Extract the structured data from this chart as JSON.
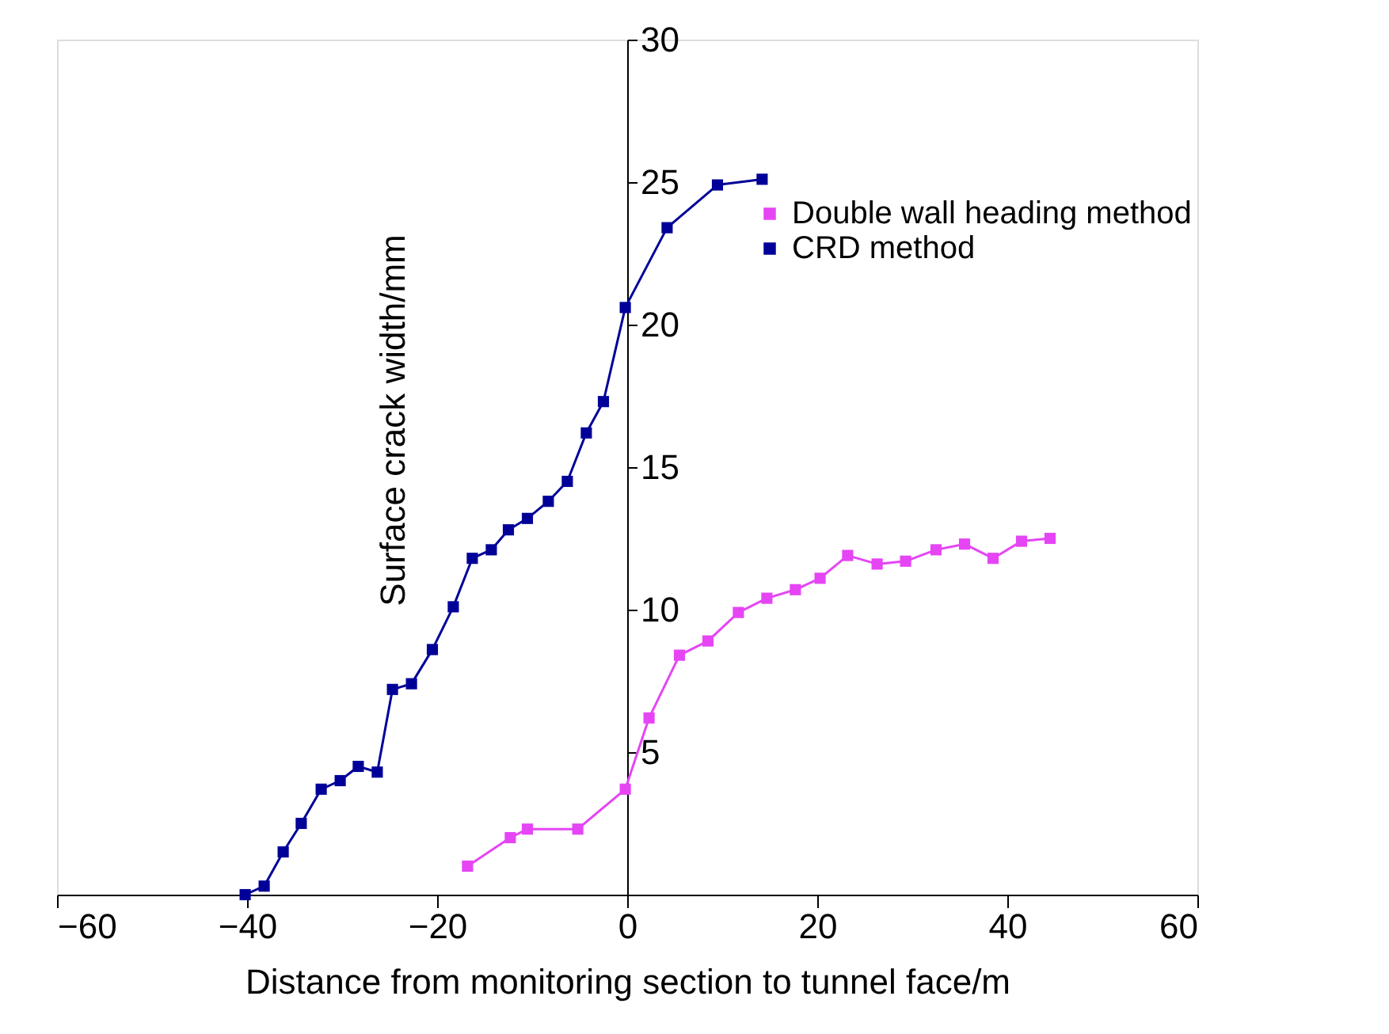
{
  "chart_data": {
    "type": "line",
    "xlabel": "Distance from monitoring section to tunnel face/m",
    "ylabel": "Surface crack width/mm",
    "xlim": [
      -60,
      60
    ],
    "xticks": [
      -60,
      -40,
      -20,
      0,
      20,
      40,
      60
    ],
    "ylim": [
      0,
      30
    ],
    "yticks": [
      {
        "value": 0,
        "label": null
      },
      5,
      10,
      15,
      20,
      25,
      30
    ],
    "grid": false,
    "legend": "top right",
    "marker": "square",
    "line_style": "solid",
    "series": [
      {
        "name": "Double wall heading method",
        "color": "#e545f5",
        "x": [
          -16.8,
          -12.3,
          -10.5,
          -5.2,
          -0.2,
          2.3,
          5.5,
          8.5,
          11.7,
          14.7,
          17.7,
          20.3,
          23.2,
          26.3,
          29.3,
          32.5,
          35.5,
          38.5,
          41.5,
          44.5
        ],
        "values": [
          1.0,
          2.0,
          2.3,
          2.3,
          3.7,
          6.2,
          8.4,
          8.9,
          9.9,
          10.4,
          10.7,
          11.1,
          11.9,
          11.6,
          11.7,
          12.1,
          12.3,
          11.8,
          12.4,
          12.5
        ]
      },
      {
        "name": "CRD method",
        "color": "#000099",
        "x": [
          -40.2,
          -38.2,
          -36.2,
          -34.3,
          -32.2,
          -30.2,
          -28.3,
          -26.3,
          -24.7,
          -22.7,
          -20.5,
          -18.3,
          -16.3,
          -14.3,
          -12.5,
          -10.5,
          -8.3,
          -6.3,
          -4.3,
          -2.5,
          -0.2,
          4.2,
          9.5,
          14.2
        ],
        "values": [
          0.0,
          0.3,
          1.5,
          2.5,
          3.7,
          4.0,
          4.5,
          4.3,
          7.2,
          7.4,
          8.6,
          10.1,
          11.8,
          12.1,
          12.8,
          13.2,
          13.8,
          14.5,
          16.2,
          17.3,
          20.6,
          23.4,
          24.9,
          25.1
        ]
      }
    ]
  }
}
